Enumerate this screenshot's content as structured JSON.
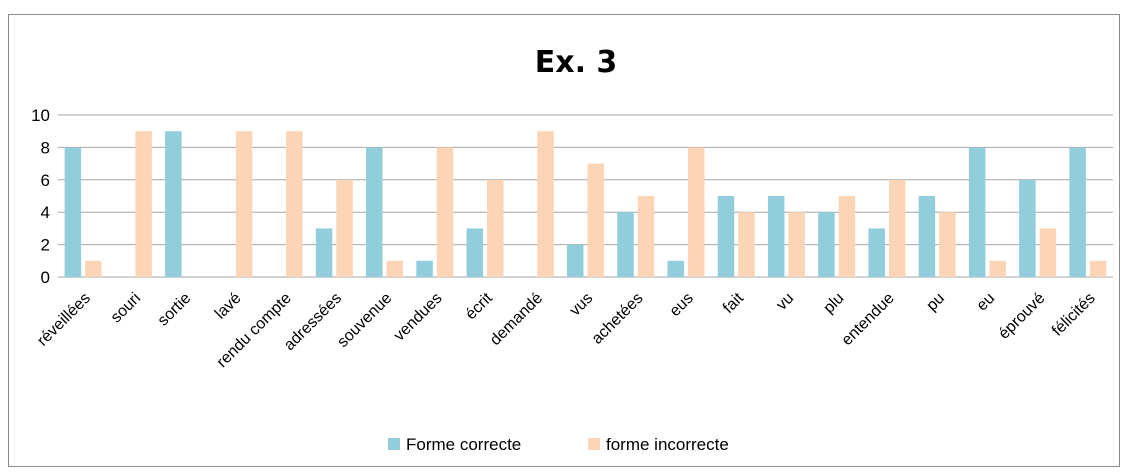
{
  "chart_data": {
    "type": "bar",
    "title": "Ex. 3",
    "xlabel": "",
    "ylabel": "",
    "ylim": [
      0,
      10
    ],
    "yticks": [
      0,
      2,
      4,
      6,
      8,
      10
    ],
    "grid": true,
    "legend_position": "bottom",
    "categories": [
      "réveillées",
      "souri",
      "sortie",
      "lavé",
      "rendu compte",
      "adressées",
      "souvenue",
      "vendues",
      "écrit",
      "demandé",
      "vus",
      "achetées",
      "eus",
      "fait",
      "vu",
      "plu",
      "entendue",
      "pu",
      "eu",
      "éprouvé",
      "félicités"
    ],
    "series": [
      {
        "name": "Forme correcte",
        "color": "#92CDDC",
        "values": [
          8,
          0,
          9,
          0,
          0,
          3,
          8,
          1,
          3,
          0,
          2,
          4,
          1,
          5,
          5,
          4,
          3,
          5,
          8,
          6,
          8
        ]
      },
      {
        "name": "forme incorrecte",
        "color": "#FBD5B5",
        "values": [
          1,
          9,
          0,
          9,
          9,
          6,
          1,
          8,
          6,
          9,
          7,
          5,
          8,
          4,
          4,
          5,
          6,
          4,
          1,
          3,
          1
        ]
      }
    ]
  }
}
